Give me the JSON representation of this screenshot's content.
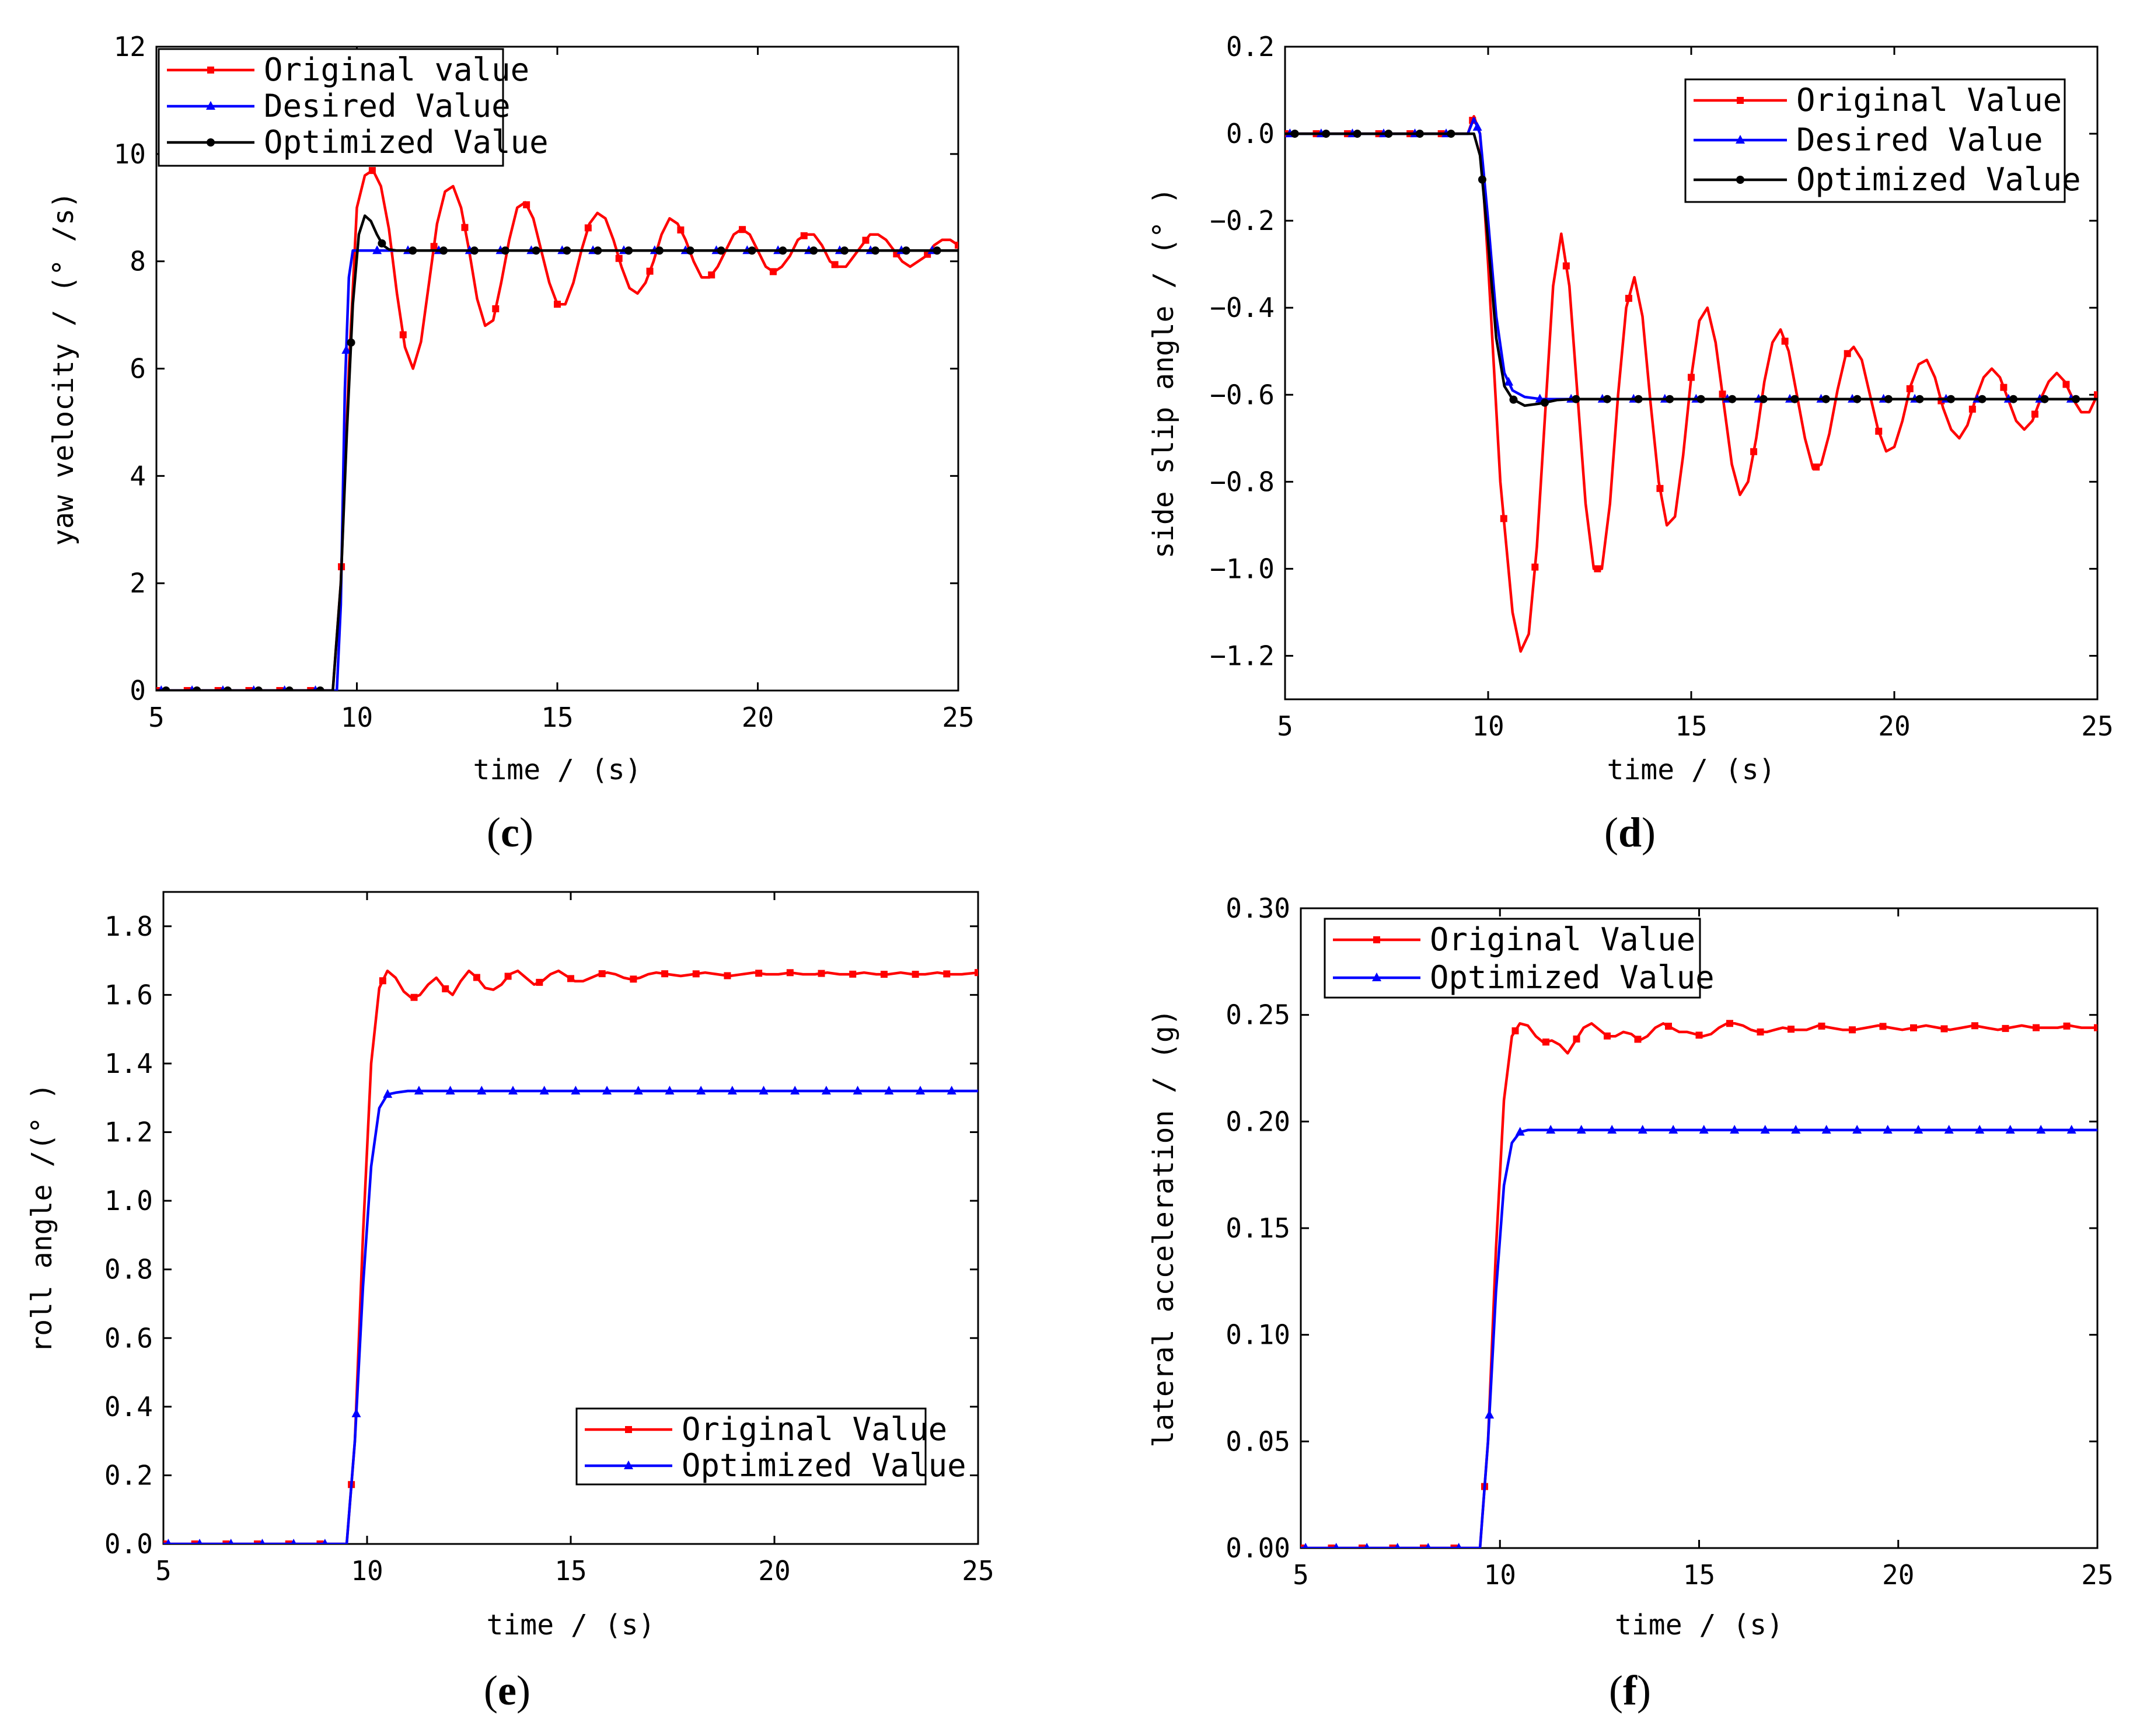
{
  "chart_data": [
    {
      "type": "line",
      "panel": "c",
      "caption_open": "(",
      "caption_letter": "c",
      "caption_close": ")",
      "xlabel": "time / (s)",
      "ylabel": "yaw velocity / (° /s)",
      "xlim": [
        5,
        25
      ],
      "ylim": [
        0,
        12
      ],
      "xticks": [
        5,
        10,
        15,
        20,
        25
      ],
      "yticks": [
        0,
        2,
        4,
        6,
        8,
        10,
        12
      ],
      "xtick_labels": [
        "5",
        "10",
        "15",
        "20",
        "25"
      ],
      "ytick_labels": [
        "0",
        "2",
        "4",
        "6",
        "8",
        "10",
        "12"
      ],
      "legend_position": "top-left",
      "series": [
        {
          "name": "Original value",
          "color": "#ff0000",
          "marker": "square",
          "x": [
            5,
            9.4,
            9.6,
            9.8,
            10.0,
            10.2,
            10.4,
            10.6,
            10.8,
            11.0,
            11.2,
            11.4,
            11.6,
            11.8,
            12.0,
            12.2,
            12.4,
            12.6,
            12.8,
            13.0,
            13.2,
            13.4,
            13.6,
            13.8,
            14.0,
            14.2,
            14.4,
            14.6,
            14.8,
            15.0,
            15.2,
            15.4,
            15.6,
            15.8,
            16.0,
            16.2,
            16.4,
            16.6,
            16.8,
            17.0,
            17.2,
            17.4,
            17.6,
            17.8,
            18.0,
            18.2,
            18.4,
            18.6,
            18.8,
            19.0,
            19.2,
            19.4,
            19.6,
            19.8,
            20.0,
            20.2,
            20.4,
            20.6,
            20.8,
            21.0,
            21.2,
            21.4,
            21.6,
            21.8,
            22.0,
            22.2,
            22.4,
            22.6,
            22.8,
            23.0,
            23.2,
            23.4,
            23.6,
            23.8,
            24.0,
            24.2,
            24.4,
            24.6,
            24.8,
            25.0
          ],
          "values": [
            0,
            0,
            2.0,
            6.0,
            9.0,
            9.6,
            9.7,
            9.4,
            8.6,
            7.4,
            6.4,
            6.0,
            6.5,
            7.6,
            8.7,
            9.3,
            9.4,
            9.0,
            8.2,
            7.3,
            6.8,
            6.9,
            7.6,
            8.4,
            9.0,
            9.1,
            8.8,
            8.2,
            7.6,
            7.2,
            7.2,
            7.6,
            8.2,
            8.7,
            8.9,
            8.8,
            8.4,
            7.9,
            7.5,
            7.4,
            7.6,
            8.0,
            8.5,
            8.8,
            8.7,
            8.4,
            8.0,
            7.7,
            7.7,
            7.9,
            8.2,
            8.5,
            8.6,
            8.5,
            8.2,
            7.9,
            7.8,
            7.9,
            8.1,
            8.4,
            8.5,
            8.5,
            8.3,
            8.0,
            7.9,
            7.9,
            8.1,
            8.3,
            8.5,
            8.5,
            8.4,
            8.2,
            8.0,
            7.9,
            8.0,
            8.1,
            8.3,
            8.4,
            8.4,
            8.3
          ]
        },
        {
          "name": "Desired Value",
          "color": "#0000ff",
          "marker": "triangle",
          "x": [
            5,
            9.5,
            9.6,
            9.7,
            9.8,
            9.9,
            25
          ],
          "values": [
            0,
            0,
            1.6,
            5.6,
            7.7,
            8.2,
            8.2
          ]
        },
        {
          "name": "Optimized Value",
          "color": "#000000",
          "marker": "circle",
          "x": [
            5,
            9.4,
            9.6,
            9.75,
            9.9,
            10.05,
            10.2,
            10.35,
            10.5,
            10.65,
            10.8,
            11.0,
            11.2,
            11.4,
            25
          ],
          "values": [
            0,
            0,
            2.0,
            4.8,
            7.2,
            8.5,
            8.85,
            8.75,
            8.5,
            8.3,
            8.22,
            8.2,
            8.2,
            8.2,
            8.2
          ]
        }
      ]
    },
    {
      "type": "line",
      "panel": "d",
      "caption_open": "(",
      "caption_letter": "d",
      "caption_close": ")",
      "xlabel": "time / (s)",
      "ylabel": "side slip angle / (° )",
      "xlim": [
        5,
        25
      ],
      "ylim": [
        -1.3,
        0.2
      ],
      "xticks": [
        5,
        10,
        15,
        20,
        25
      ],
      "yticks": [
        0.2,
        0.0,
        -0.2,
        -0.4,
        -0.6,
        -0.8,
        -1.0,
        -1.2
      ],
      "xtick_labels": [
        "5",
        "10",
        "15",
        "20",
        "25"
      ],
      "ytick_labels": [
        "0.2",
        "0.0",
        "−0.2",
        "−0.4",
        "−0.6",
        "−0.8",
        "−1.0",
        "−1.2"
      ],
      "legend_position": "top-right",
      "series": [
        {
          "name": "Original Value",
          "color": "#ff0000",
          "marker": "square",
          "x": [
            5,
            9.5,
            9.65,
            9.8,
            10.0,
            10.3,
            10.6,
            10.8,
            11.0,
            11.2,
            11.4,
            11.6,
            11.8,
            12.0,
            12.2,
            12.4,
            12.6,
            12.8,
            13.0,
            13.2,
            13.4,
            13.6,
            13.8,
            14.0,
            14.2,
            14.4,
            14.6,
            14.8,
            15.0,
            15.2,
            15.4,
            15.6,
            15.8,
            16.0,
            16.2,
            16.4,
            16.6,
            16.8,
            17.0,
            17.2,
            17.4,
            17.6,
            17.8,
            18.0,
            18.2,
            18.4,
            18.6,
            18.8,
            19.0,
            19.2,
            19.4,
            19.6,
            19.8,
            20.0,
            20.2,
            20.4,
            20.6,
            20.8,
            21.0,
            21.2,
            21.4,
            21.6,
            21.8,
            22.0,
            22.2,
            22.4,
            22.6,
            22.8,
            23.0,
            23.2,
            23.4,
            23.6,
            23.8,
            24.0,
            24.2,
            24.4,
            24.6,
            24.8,
            25.0
          ],
          "values": [
            0,
            0,
            0.04,
            0.0,
            -0.3,
            -0.8,
            -1.1,
            -1.19,
            -1.15,
            -0.95,
            -0.65,
            -0.35,
            -0.23,
            -0.35,
            -0.6,
            -0.85,
            -1.0,
            -1.0,
            -0.85,
            -0.6,
            -0.4,
            -0.33,
            -0.42,
            -0.62,
            -0.8,
            -0.9,
            -0.88,
            -0.74,
            -0.56,
            -0.43,
            -0.4,
            -0.48,
            -0.62,
            -0.76,
            -0.83,
            -0.8,
            -0.7,
            -0.57,
            -0.48,
            -0.45,
            -0.5,
            -0.6,
            -0.7,
            -0.77,
            -0.76,
            -0.69,
            -0.59,
            -0.51,
            -0.49,
            -0.52,
            -0.6,
            -0.68,
            -0.73,
            -0.72,
            -0.66,
            -0.58,
            -0.53,
            -0.52,
            -0.56,
            -0.63,
            -0.68,
            -0.7,
            -0.67,
            -0.61,
            -0.56,
            -0.54,
            -0.56,
            -0.61,
            -0.66,
            -0.68,
            -0.66,
            -0.61,
            -0.57,
            -0.55,
            -0.57,
            -0.61,
            -0.64,
            -0.64,
            -0.6
          ]
        },
        {
          "name": "Desired Value",
          "color": "#0000ff",
          "marker": "triangle",
          "x": [
            5,
            9.5,
            9.65,
            9.8,
            10.0,
            10.2,
            10.4,
            10.6,
            10.9,
            11.3,
            11.8,
            25
          ],
          "values": [
            0,
            0,
            0.035,
            0.0,
            -0.2,
            -0.42,
            -0.55,
            -0.59,
            -0.605,
            -0.61,
            -0.61,
            -0.61
          ]
        },
        {
          "name": "Optimized Value",
          "color": "#000000",
          "marker": "circle",
          "x": [
            5,
            9.5,
            9.65,
            9.8,
            10.0,
            10.2,
            10.4,
            10.6,
            10.9,
            11.3,
            11.7,
            12.1,
            25
          ],
          "values": [
            0,
            0,
            0.0,
            -0.05,
            -0.25,
            -0.47,
            -0.58,
            -0.61,
            -0.625,
            -0.62,
            -0.612,
            -0.61,
            -0.61
          ]
        }
      ]
    },
    {
      "type": "line",
      "panel": "e",
      "caption_open": "(",
      "caption_letter": "e",
      "caption_close": ")",
      "xlabel": "time / (s)",
      "ylabel": "roll angle /(° )",
      "xlim": [
        5,
        25
      ],
      "ylim": [
        0,
        1.9
      ],
      "xticks": [
        5,
        10,
        15,
        20,
        25
      ],
      "yticks": [
        0.0,
        0.2,
        0.4,
        0.6,
        0.8,
        1.0,
        1.2,
        1.4,
        1.6,
        1.8
      ],
      "xtick_labels": [
        "5",
        "10",
        "15",
        "20",
        "25"
      ],
      "ytick_labels": [
        "0.0",
        "0.2",
        "0.4",
        "0.6",
        "0.8",
        "1.0",
        "1.2",
        "1.4",
        "1.6",
        "1.8"
      ],
      "legend_position": "bottom-right",
      "series": [
        {
          "name": "Original Value",
          "color": "#ff0000",
          "marker": "square",
          "x": [
            5,
            9.5,
            9.7,
            9.9,
            10.1,
            10.3,
            10.5,
            10.7,
            10.9,
            11.1,
            11.3,
            11.5,
            11.7,
            11.9,
            12.1,
            12.3,
            12.5,
            12.7,
            12.9,
            13.1,
            13.3,
            13.5,
            13.7,
            13.9,
            14.1,
            14.3,
            14.5,
            14.7,
            14.9,
            15.1,
            15.3,
            15.5,
            15.7,
            15.9,
            16.1,
            16.3,
            16.5,
            16.7,
            16.9,
            17.1,
            17.4,
            17.7,
            18.0,
            18.3,
            18.6,
            18.9,
            19.2,
            19.5,
            19.8,
            20.1,
            20.4,
            20.7,
            21.0,
            21.3,
            21.6,
            21.9,
            22.2,
            22.5,
            22.8,
            23.1,
            23.4,
            23.7,
            24.0,
            24.3,
            24.6,
            25.0
          ],
          "values": [
            0,
            0,
            0.3,
            0.9,
            1.4,
            1.62,
            1.67,
            1.65,
            1.61,
            1.59,
            1.6,
            1.63,
            1.65,
            1.62,
            1.6,
            1.64,
            1.67,
            1.65,
            1.62,
            1.615,
            1.63,
            1.66,
            1.67,
            1.65,
            1.63,
            1.64,
            1.66,
            1.67,
            1.655,
            1.64,
            1.64,
            1.65,
            1.66,
            1.665,
            1.66,
            1.65,
            1.645,
            1.65,
            1.66,
            1.665,
            1.66,
            1.655,
            1.66,
            1.665,
            1.66,
            1.655,
            1.66,
            1.665,
            1.66,
            1.66,
            1.665,
            1.66,
            1.66,
            1.665,
            1.66,
            1.66,
            1.665,
            1.66,
            1.66,
            1.665,
            1.66,
            1.66,
            1.665,
            1.66,
            1.66,
            1.665
          ]
        },
        {
          "name": "Optimized Value",
          "color": "#0000ff",
          "marker": "triangle",
          "x": [
            5,
            9.5,
            9.7,
            9.9,
            10.1,
            10.3,
            10.5,
            10.7,
            11.0,
            25
          ],
          "values": [
            0,
            0,
            0.3,
            0.75,
            1.1,
            1.27,
            1.31,
            1.315,
            1.32,
            1.32
          ]
        }
      ]
    },
    {
      "type": "line",
      "panel": "f",
      "caption_open": "(",
      "caption_letter": "f",
      "caption_close": ")",
      "xlabel": "time / (s)",
      "ylabel": "lateral acceleration / (g)",
      "xlim": [
        5,
        25
      ],
      "ylim": [
        0,
        0.3
      ],
      "xticks": [
        5,
        10,
        15,
        20,
        25
      ],
      "yticks": [
        0.0,
        0.05,
        0.1,
        0.15,
        0.2,
        0.25,
        0.3
      ],
      "xtick_labels": [
        "5",
        "10",
        "15",
        "20",
        "25"
      ],
      "ytick_labels": [
        "0.00",
        "0.05",
        "0.10",
        "0.15",
        "0.20",
        "0.25",
        "0.30"
      ],
      "legend_position": "top-left",
      "series": [
        {
          "name": "Original Value",
          "color": "#ff0000",
          "marker": "square",
          "x": [
            5,
            9.5,
            9.7,
            9.9,
            10.1,
            10.3,
            10.5,
            10.7,
            10.9,
            11.1,
            11.3,
            11.5,
            11.7,
            11.9,
            12.1,
            12.3,
            12.5,
            12.7,
            12.9,
            13.1,
            13.3,
            13.5,
            13.7,
            13.9,
            14.1,
            14.3,
            14.5,
            14.7,
            14.9,
            15.1,
            15.3,
            15.5,
            15.7,
            15.9,
            16.1,
            16.3,
            16.5,
            16.7,
            16.9,
            17.1,
            17.4,
            17.7,
            18.0,
            18.3,
            18.6,
            18.9,
            19.2,
            19.5,
            19.8,
            20.1,
            20.4,
            20.7,
            21.0,
            21.3,
            21.6,
            21.9,
            22.2,
            22.5,
            22.8,
            23.1,
            23.4,
            23.7,
            24.0,
            24.3,
            24.6,
            25.0
          ],
          "values": [
            0,
            0,
            0.05,
            0.14,
            0.21,
            0.24,
            0.246,
            0.245,
            0.24,
            0.237,
            0.238,
            0.236,
            0.232,
            0.238,
            0.244,
            0.246,
            0.243,
            0.24,
            0.24,
            0.242,
            0.241,
            0.238,
            0.24,
            0.244,
            0.246,
            0.244,
            0.242,
            0.242,
            0.241,
            0.24,
            0.241,
            0.244,
            0.246,
            0.246,
            0.245,
            0.243,
            0.242,
            0.242,
            0.243,
            0.244,
            0.243,
            0.243,
            0.245,
            0.244,
            0.243,
            0.243,
            0.244,
            0.245,
            0.244,
            0.243,
            0.244,
            0.245,
            0.244,
            0.243,
            0.244,
            0.245,
            0.244,
            0.243,
            0.244,
            0.245,
            0.244,
            0.244,
            0.244,
            0.245,
            0.244,
            0.244
          ]
        },
        {
          "name": "Optimized Value",
          "color": "#0000ff",
          "marker": "triangle",
          "x": [
            5,
            9.5,
            9.7,
            9.9,
            10.1,
            10.3,
            10.5,
            10.7,
            11.0,
            25
          ],
          "values": [
            0,
            0,
            0.05,
            0.12,
            0.17,
            0.19,
            0.195,
            0.196,
            0.196,
            0.196
          ]
        }
      ]
    }
  ]
}
